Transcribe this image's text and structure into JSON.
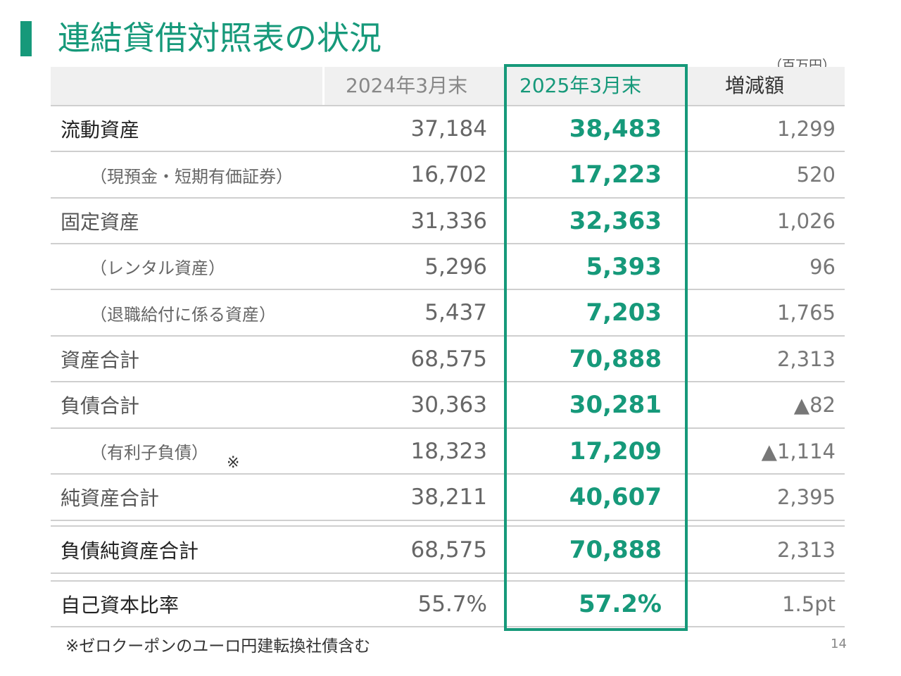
{
  "title": "連結貸借対照表の状況",
  "unit_note": "（百万円）",
  "columns": [
    "",
    "2024年3月末",
    "2025年3月末",
    "増減額"
  ],
  "rows": [
    {
      "label": "流動資産",
      "prev": "37,184",
      "curr": "38,483",
      "diff": "1,299"
    },
    {
      "label": "（現預金・短期有価証券）",
      "prev": "16,702",
      "curr": "17,223",
      "diff": "520"
    },
    {
      "label": "固定資産",
      "prev": "31,336",
      "curr": "32,363",
      "diff": "1,026"
    },
    {
      "label": "（レンタル資産）",
      "prev": "5,296",
      "curr": "5,393",
      "diff": "96"
    },
    {
      "label": "（退職給付に係る資産）",
      "prev": "5,437",
      "curr": "7,203",
      "diff": "1,765"
    },
    {
      "label": "資産合計",
      "prev": "68,575",
      "curr": "70,888",
      "diff": "2,313"
    },
    {
      "label": "負債合計",
      "prev": "30,363",
      "curr": "30,281",
      "diff": "▲82"
    },
    {
      "label": "（有利子負債）",
      "prev": "18,323",
      "curr": "17,209",
      "diff": "▲1,114",
      "mark": "※"
    },
    {
      "label": "純資産合計",
      "prev": "38,211",
      "curr": "40,607",
      "diff": "2,395"
    },
    {
      "label": "負債純資産合計",
      "prev": "68,575",
      "curr": "70,888",
      "diff": "2,313"
    },
    {
      "label": "自己資本比率",
      "prev": "55.7%",
      "curr": "57.2%",
      "diff": "1.5pt"
    }
  ],
  "footnote": "※ゼロクーポンのユーロ円建転換社債含む",
  "page_number": "14",
  "colors": {
    "accent": "#16997a",
    "header_bg": "#f0f0f0"
  }
}
